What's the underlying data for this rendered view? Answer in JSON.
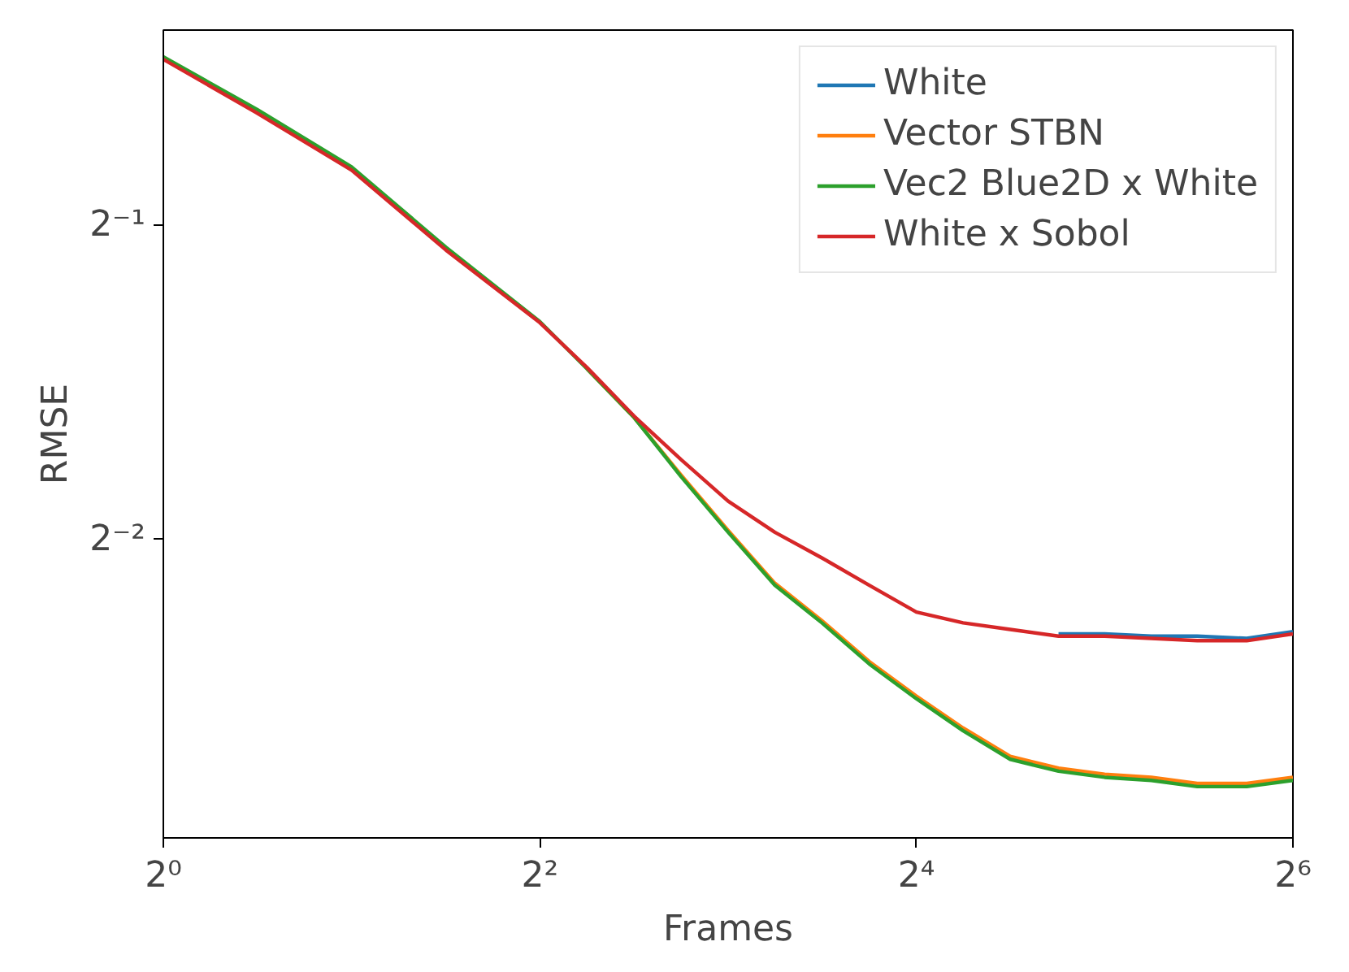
{
  "chart_data": {
    "type": "line",
    "xlabel": "Frames",
    "ylabel": "RMSE",
    "log": "xy",
    "grid": false,
    "legend": "top right",
    "marker": "none",
    "line_style": "solid",
    "x": [
      1,
      1.41,
      2,
      2.83,
      4,
      4.76,
      5.66,
      6.73,
      8,
      9.5,
      11.3,
      13.45,
      16,
      19,
      22.6,
      27,
      32,
      38,
      45,
      54,
      64
    ],
    "xlim": [
      1,
      64
    ],
    "ylim": [
      0.1295,
      0.768
    ],
    "xticks": [
      {
        "value": 1,
        "label": "2⁰"
      },
      {
        "value": 4,
        "label": "2²"
      },
      {
        "value": 16,
        "label": "2⁴"
      },
      {
        "value": 64,
        "label": "2⁶"
      }
    ],
    "yticks": [
      {
        "value": 0.25,
        "label": "2⁻²"
      },
      {
        "value": 0.5,
        "label": "2⁻¹"
      }
    ],
    "series": [
      {
        "name": "White",
        "color": "#1f77b4",
        "values": [
          null,
          null,
          null,
          null,
          null,
          null,
          null,
          null,
          null,
          null,
          null,
          null,
          null,
          null,
          null,
          0.203,
          0.203,
          0.202,
          0.202,
          0.201,
          0.204
        ]
      },
      {
        "name": "Vector STBN",
        "color": "#ff7f0e",
        "values": [
          null,
          null,
          null,
          null,
          null,
          0.364,
          0.327,
          0.288,
          0.255,
          0.227,
          0.209,
          0.191,
          0.177,
          0.165,
          0.155,
          0.151,
          0.149,
          0.148,
          0.146,
          0.146,
          0.148
        ]
      },
      {
        "name": "Vec2 Blue2D x White",
        "color": "#2ca02c",
        "values": [
          0.724,
          0.645,
          0.568,
          0.476,
          0.404,
          0.364,
          0.327,
          0.287,
          0.254,
          0.226,
          0.208,
          0.19,
          0.176,
          0.164,
          0.154,
          0.15,
          0.148,
          0.147,
          0.145,
          0.145,
          0.147
        ]
      },
      {
        "name": "White x Sobol",
        "color": "#d62728",
        "values": [
          0.72,
          0.64,
          0.564,
          0.473,
          0.403,
          0.365,
          0.328,
          0.298,
          0.272,
          0.254,
          0.24,
          0.226,
          0.213,
          0.208,
          0.205,
          0.202,
          0.202,
          0.201,
          0.2,
          0.2,
          0.203
        ]
      }
    ]
  }
}
